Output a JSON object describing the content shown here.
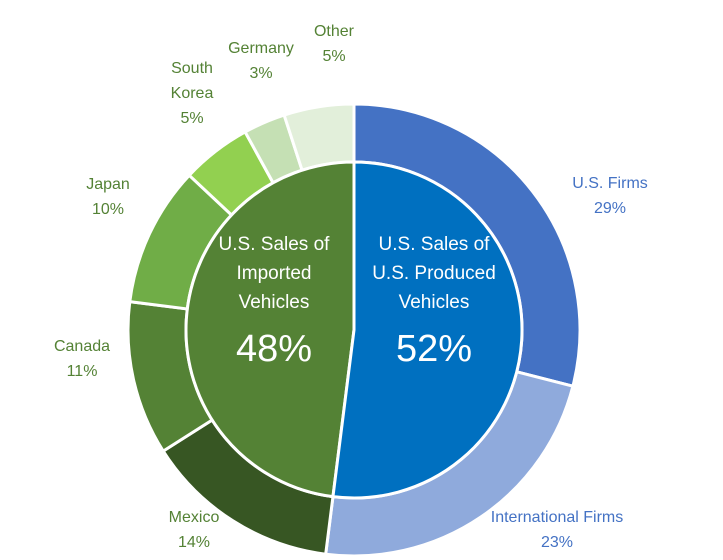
{
  "chart_data": {
    "type": "pie",
    "inner": [
      {
        "label_lines": [
          "U.S. Sales of",
          "Imported",
          "Vehicles"
        ],
        "pct_text": "48%",
        "value": 48,
        "color": "#548235"
      },
      {
        "label_lines": [
          "U.S. Sales of",
          "U.S. Produced",
          "Vehicles"
        ],
        "pct_text": "52%",
        "value": 52,
        "color": "#0070C0"
      }
    ],
    "outer": [
      {
        "name": "U.S. Firms",
        "pct_text": "29%",
        "value": 29,
        "color": "#4472C4",
        "text_color": "#4472C4"
      },
      {
        "name": "International Firms",
        "pct_text": "23%",
        "value": 23,
        "color": "#8FAADC",
        "text_color": "#4472C4"
      },
      {
        "name": "Mexico",
        "pct_text": "14%",
        "value": 14,
        "color": "#375623",
        "text_color": "#548235"
      },
      {
        "name": "Canada",
        "pct_text": "11%",
        "value": 11,
        "color": "#548235",
        "text_color": "#548235"
      },
      {
        "name": "Japan",
        "pct_text": "10%",
        "value": 10,
        "color": "#70AD47",
        "text_color": "#548235"
      },
      {
        "name": "South Korea",
        "name_lines": [
          "South",
          "Korea"
        ],
        "pct_text": "5%",
        "value": 5,
        "color": "#92D050",
        "text_color": "#548235"
      },
      {
        "name": "Germany",
        "pct_text": "3%",
        "value": 3,
        "color": "#C5E0B4",
        "text_color": "#548235"
      },
      {
        "name": "Other",
        "pct_text": "5%",
        "value": 5,
        "color": "#E2EFDA",
        "text_color": "#548235"
      }
    ]
  }
}
